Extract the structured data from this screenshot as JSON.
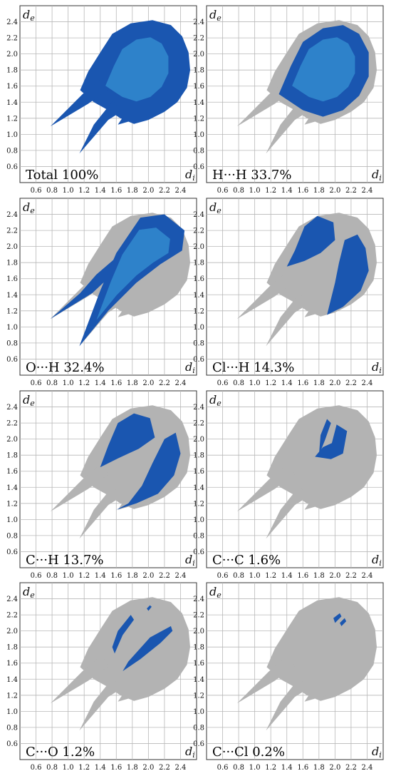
{
  "chart_data": [
    {
      "type": "scatter",
      "label": "Total 100%",
      "xlabel": "d",
      "xlabel_sub": "i",
      "ylabel": "d",
      "ylabel_sub": "e",
      "xlim": [
        0.4,
        2.6
      ],
      "ylim": [
        0.4,
        2.6
      ],
      "xticks": [
        "0.6",
        "0.8",
        "1.0",
        "1.2",
        "1.4",
        "1.6",
        "1.8",
        "2.0",
        "2.2",
        "2.4"
      ],
      "yticks": [
        "0.6",
        "0.8",
        "1.0",
        "1.2",
        "1.4",
        "1.6",
        "1.8",
        "2.0",
        "2.2",
        "2.4"
      ],
      "highlight": "all"
    },
    {
      "type": "scatter",
      "label": "H···H 33.7%",
      "xlabel": "d",
      "xlabel_sub": "i",
      "ylabel": "d",
      "ylabel_sub": "e",
      "xlim": [
        0.4,
        2.6
      ],
      "ylim": [
        0.4,
        2.6
      ],
      "xticks": [
        "0.6",
        "0.8",
        "1.0",
        "1.2",
        "1.4",
        "1.6",
        "1.8",
        "2.0",
        "2.2",
        "2.4"
      ],
      "yticks": [
        "0.6",
        "0.8",
        "1.0",
        "1.2",
        "1.4",
        "1.6",
        "1.8",
        "2.0",
        "2.2",
        "2.4"
      ],
      "highlight": "HH"
    },
    {
      "type": "scatter",
      "label": "O···H 32.4%",
      "xlabel": "d",
      "xlabel_sub": "i",
      "ylabel": "d",
      "ylabel_sub": "e",
      "xlim": [
        0.4,
        2.6
      ],
      "ylim": [
        0.4,
        2.6
      ],
      "xticks": [
        "0.6",
        "0.8",
        "1.0",
        "1.2",
        "1.4",
        "1.6",
        "1.8",
        "2.0",
        "2.2",
        "2.4"
      ],
      "yticks": [
        "0.6",
        "0.8",
        "1.0",
        "1.2",
        "1.4",
        "1.6",
        "1.8",
        "2.0",
        "2.2",
        "2.4"
      ],
      "highlight": "OH"
    },
    {
      "type": "scatter",
      "label": "Cl···H 14.3%",
      "xlabel": "d",
      "xlabel_sub": "i",
      "ylabel": "d",
      "ylabel_sub": "e",
      "xlim": [
        0.4,
        2.6
      ],
      "ylim": [
        0.4,
        2.6
      ],
      "xticks": [
        "0.6",
        "0.8",
        "1.0",
        "1.2",
        "1.4",
        "1.6",
        "1.8",
        "2.0",
        "2.2",
        "2.4"
      ],
      "yticks": [
        "0.6",
        "0.8",
        "1.0",
        "1.2",
        "1.4",
        "1.6",
        "1.8",
        "2.0",
        "2.2",
        "2.4"
      ],
      "highlight": "ClH"
    },
    {
      "type": "scatter",
      "label": "C···H 13.7%",
      "xlabel": "d",
      "xlabel_sub": "i",
      "ylabel": "d",
      "ylabel_sub": "e",
      "xlim": [
        0.4,
        2.6
      ],
      "ylim": [
        0.4,
        2.6
      ],
      "xticks": [
        "0.6",
        "0.8",
        "1.0",
        "1.2",
        "1.4",
        "1.6",
        "1.8",
        "2.0",
        "2.2",
        "2.4"
      ],
      "yticks": [
        "0.6",
        "0.8",
        "1.0",
        "1.2",
        "1.4",
        "1.6",
        "1.8",
        "2.0",
        "2.2",
        "2.4"
      ],
      "highlight": "CH"
    },
    {
      "type": "scatter",
      "label": "C···C 1.6%",
      "xlabel": "d",
      "xlabel_sub": "i",
      "ylabel": "d",
      "ylabel_sub": "e",
      "xlim": [
        0.4,
        2.6
      ],
      "ylim": [
        0.4,
        2.6
      ],
      "xticks": [
        "0.6",
        "0.8",
        "1.0",
        "1.2",
        "1.4",
        "1.6",
        "1.8",
        "2.0",
        "2.2",
        "2.4"
      ],
      "yticks": [
        "0.6",
        "0.8",
        "1.0",
        "1.2",
        "1.4",
        "1.6",
        "1.8",
        "2.0",
        "2.2",
        "2.4"
      ],
      "highlight": "CC"
    },
    {
      "type": "scatter",
      "label": "C···O 1.2%",
      "xlabel": "d",
      "xlabel_sub": "i",
      "ylabel": "d",
      "ylabel_sub": "e",
      "xlim": [
        0.4,
        2.6
      ],
      "ylim": [
        0.4,
        2.6
      ],
      "xticks": [
        "0.6",
        "0.8",
        "1.0",
        "1.2",
        "1.4",
        "1.6",
        "1.8",
        "2.0",
        "2.2",
        "2.4"
      ],
      "yticks": [
        "0.6",
        "0.8",
        "1.0",
        "1.2",
        "1.4",
        "1.6",
        "1.8",
        "2.0",
        "2.2",
        "2.4"
      ],
      "highlight": "CO"
    },
    {
      "type": "scatter",
      "label": "C···Cl 0.2%",
      "xlabel": "d",
      "xlabel_sub": "i",
      "ylabel": "d",
      "ylabel_sub": "e",
      "xlim": [
        0.4,
        2.6
      ],
      "ylim": [
        0.4,
        2.6
      ],
      "xticks": [
        "0.6",
        "0.8",
        "1.0",
        "1.2",
        "1.4",
        "1.6",
        "1.8",
        "2.0",
        "2.2",
        "2.4"
      ],
      "yticks": [
        "0.6",
        "0.8",
        "1.0",
        "1.2",
        "1.4",
        "1.6",
        "1.8",
        "2.0",
        "2.2",
        "2.4"
      ],
      "highlight": "CCl"
    }
  ],
  "colors": {
    "fingerprint_grey": "#b3b3b3",
    "highlight_blue": "#1a56b0",
    "highlight_cyan": "#3fa8e0"
  }
}
